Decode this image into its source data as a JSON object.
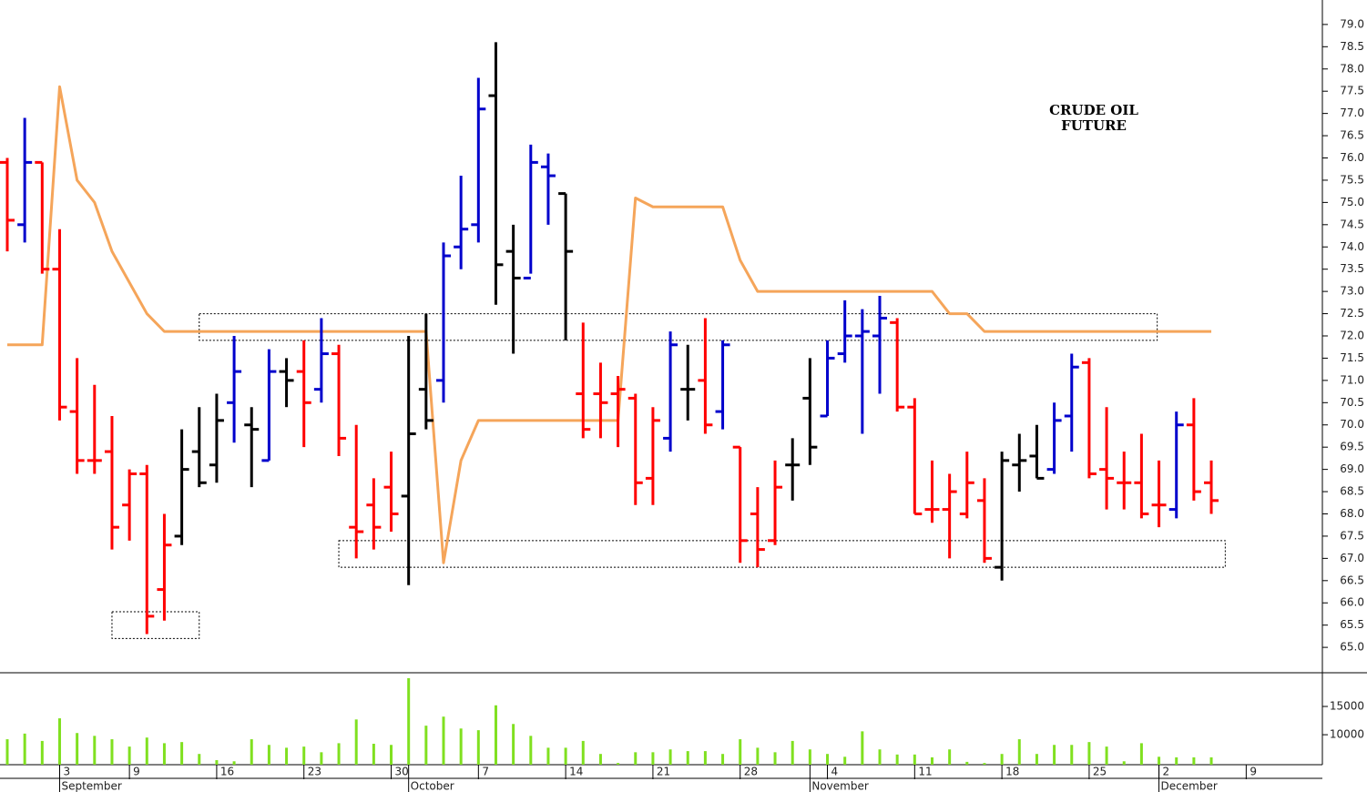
{
  "chart_data": {
    "type": "ohlc",
    "title_lines": [
      "CRUDE OIL",
      "FUTURE"
    ],
    "categories": [
      null,
      null,
      null,
      "3",
      null,
      null,
      null,
      "9",
      null,
      null,
      null,
      null,
      "16",
      null,
      null,
      null,
      null,
      "23",
      null,
      null,
      null,
      null,
      "30",
      null,
      null,
      null,
      null,
      "7",
      null,
      null,
      null,
      null,
      "14",
      null,
      null,
      null,
      null,
      "21",
      null,
      null,
      null,
      null,
      "28",
      null,
      null,
      null,
      null,
      "4",
      null,
      null,
      null,
      null,
      "11",
      null,
      null,
      null,
      null,
      "18",
      null,
      null,
      null,
      null,
      "25",
      null,
      null,
      null,
      "2",
      null,
      null,
      null,
      null,
      "9"
    ],
    "months": [
      {
        "index": 3,
        "label": "September"
      },
      {
        "index": 23,
        "label": "October"
      },
      {
        "index": 46,
        "label": "November"
      },
      {
        "index": 66,
        "label": "December"
      }
    ],
    "open": [
      75.9,
      74.5,
      75.9,
      73.5,
      70.3,
      69.2,
      69.4,
      68.2,
      68.9,
      66.3,
      67.5,
      69.4,
      69.1,
      70.5,
      70.0,
      69.2,
      71.2,
      71.2,
      70.8,
      71.6,
      67.7,
      68.2,
      68.6,
      68.4,
      70.8,
      71.0,
      74.0,
      74.5,
      77.4,
      73.9,
      73.3,
      75.8,
      75.2,
      70.7,
      70.7,
      70.7,
      70.6,
      68.8,
      69.7,
      70.8,
      71.0,
      70.3,
      69.5,
      68.0,
      67.4,
      69.1,
      70.6,
      70.2,
      71.6,
      72.0,
      72.0,
      72.3,
      70.4,
      68.1,
      68.1,
      68.0,
      68.3,
      66.8,
      69.1,
      69.3,
      69.0,
      70.2,
      71.4,
      69.0,
      68.7,
      68.7,
      68.2,
      68.1,
      70.0,
      68.7,
      null,
      null
    ],
    "high": [
      76.0,
      76.9,
      75.9,
      74.4,
      71.5,
      70.9,
      70.2,
      69.0,
      69.1,
      68.0,
      69.9,
      70.4,
      70.7,
      72.0,
      70.4,
      71.7,
      71.5,
      71.9,
      72.4,
      71.8,
      70.0,
      68.8,
      69.4,
      72.0,
      72.5,
      74.1,
      75.6,
      77.8,
      78.6,
      74.5,
      76.3,
      76.1,
      75.2,
      72.3,
      71.4,
      71.1,
      70.7,
      70.4,
      72.1,
      71.8,
      72.4,
      71.9,
      69.5,
      68.6,
      69.2,
      69.7,
      71.5,
      71.9,
      72.8,
      72.6,
      72.9,
      72.4,
      70.6,
      69.2,
      68.9,
      69.4,
      68.8,
      69.4,
      69.8,
      70.0,
      70.5,
      71.6,
      71.5,
      70.4,
      69.4,
      69.8,
      69.2,
      70.3,
      70.6,
      69.2,
      null,
      null
    ],
    "low": [
      73.9,
      74.1,
      73.4,
      70.1,
      68.9,
      68.9,
      67.2,
      67.4,
      65.3,
      65.6,
      67.3,
      68.6,
      68.7,
      69.6,
      68.6,
      69.2,
      70.4,
      69.5,
      70.5,
      69.3,
      67.0,
      67.2,
      67.6,
      66.4,
      69.9,
      70.5,
      73.5,
      74.1,
      72.7,
      71.6,
      73.4,
      74.5,
      71.9,
      69.7,
      69.7,
      69.5,
      68.2,
      68.2,
      69.4,
      70.1,
      69.8,
      69.9,
      66.9,
      66.8,
      67.3,
      68.3,
      69.1,
      70.2,
      71.4,
      69.8,
      70.7,
      70.3,
      68.0,
      67.8,
      67.0,
      67.9,
      66.9,
      66.5,
      68.5,
      68.8,
      68.9,
      69.4,
      68.8,
      68.1,
      68.1,
      67.9,
      67.7,
      67.9,
      68.3,
      68.0,
      null,
      null
    ],
    "close": [
      74.6,
      75.9,
      73.5,
      70.4,
      69.2,
      69.2,
      67.7,
      68.9,
      65.7,
      67.3,
      69.0,
      68.7,
      70.1,
      71.2,
      69.9,
      71.2,
      71.0,
      70.5,
      71.6,
      69.7,
      67.6,
      67.7,
      68.0,
      69.8,
      70.1,
      73.8,
      74.4,
      77.1,
      73.6,
      73.3,
      75.9,
      75.6,
      73.9,
      69.9,
      70.5,
      70.8,
      68.7,
      70.1,
      71.8,
      70.8,
      70.0,
      71.8,
      67.4,
      67.2,
      68.6,
      69.1,
      69.5,
      71.5,
      72.0,
      72.1,
      72.4,
      70.4,
      68.0,
      68.1,
      68.5,
      68.7,
      67.0,
      69.2,
      69.2,
      68.8,
      70.1,
      71.3,
      68.9,
      68.8,
      68.7,
      68.0,
      68.2,
      70.0,
      68.5,
      68.3,
      null,
      null
    ],
    "bar_colors": [
      "#ff0000",
      "#0000cc",
      "#ff0000",
      "#ff0000",
      "#ff0000",
      "#ff0000",
      "#ff0000",
      "#ff0000",
      "#ff0000",
      "#ff0000",
      "#000000",
      "#000000",
      "#000000",
      "#0000cc",
      "#000000",
      "#0000cc",
      "#000000",
      "#ff0000",
      "#0000cc",
      "#ff0000",
      "#ff0000",
      "#ff0000",
      "#ff0000",
      "#000000",
      "#000000",
      "#0000cc",
      "#0000cc",
      "#0000cc",
      "#000000",
      "#000000",
      "#0000cc",
      "#0000cc",
      "#000000",
      "#ff0000",
      "#ff0000",
      "#ff0000",
      "#ff0000",
      "#ff0000",
      "#0000cc",
      "#000000",
      "#ff0000",
      "#0000cc",
      "#ff0000",
      "#ff0000",
      "#ff0000",
      "#000000",
      "#000000",
      "#0000cc",
      "#0000cc",
      "#0000cc",
      "#0000cc",
      "#ff0000",
      "#ff0000",
      "#ff0000",
      "#ff0000",
      "#ff0000",
      "#ff0000",
      "#000000",
      "#000000",
      "#000000",
      "#0000cc",
      "#0000cc",
      "#ff0000",
      "#ff0000",
      "#ff0000",
      "#ff0000",
      "#ff0000",
      "#0000cc",
      "#ff0000",
      "#ff0000",
      null,
      null
    ],
    "line": {
      "color": "#f5a55a",
      "values": [
        71.8,
        71.8,
        71.8,
        77.6,
        75.5,
        75.0,
        73.9,
        73.2,
        72.5,
        72.1,
        72.1,
        72.1,
        72.1,
        72.1,
        72.1,
        72.1,
        72.1,
        72.1,
        72.1,
        72.1,
        72.1,
        72.1,
        72.1,
        72.1,
        72.1,
        66.9,
        69.2,
        70.1,
        70.1,
        70.1,
        70.1,
        70.1,
        70.1,
        70.1,
        70.1,
        70.1,
        75.1,
        74.9,
        74.9,
        74.9,
        74.9,
        74.9,
        73.7,
        73.0,
        73.0,
        73.0,
        73.0,
        73.0,
        73.0,
        73.0,
        73.0,
        73.0,
        73.0,
        73.0,
        72.5,
        72.5,
        72.1,
        72.1,
        72.1,
        72.1,
        72.1,
        72.1,
        72.1,
        72.1,
        72.1,
        72.1,
        72.1,
        72.1,
        72.1,
        72.1,
        null,
        null
      ]
    },
    "boxes": [
      {
        "x": [
          6,
          11
        ],
        "y": [
          65.2,
          65.8
        ]
      },
      {
        "x": [
          11,
          65.9
        ],
        "y": [
          71.9,
          72.5
        ]
      },
      {
        "x": [
          19,
          69.8
        ],
        "y": [
          66.8,
          67.4
        ]
      }
    ],
    "ylim": [
      64.45,
      79.55
    ],
    "yticks": [
      {
        "value": 65,
        "label": "65.0"
      },
      {
        "value": 65.5,
        "label": "65.5"
      },
      {
        "value": 66,
        "label": "66.0"
      },
      {
        "value": 66.5,
        "label": "66.5"
      },
      {
        "value": 67,
        "label": "67.0"
      },
      {
        "value": 67.5,
        "label": "67.5"
      },
      {
        "value": 68,
        "label": "68.0"
      },
      {
        "value": 68.5,
        "label": "68.5"
      },
      {
        "value": 69,
        "label": "69.0"
      },
      {
        "value": 69.5,
        "label": "69.5"
      },
      {
        "value": 70,
        "label": "70.0"
      },
      {
        "value": 70.5,
        "label": "70.5"
      },
      {
        "value": 71,
        "label": "71.0"
      },
      {
        "value": 71.5,
        "label": "71.5"
      },
      {
        "value": 72,
        "label": "72.0"
      },
      {
        "value": 72.5,
        "label": "72.5"
      },
      {
        "value": 73,
        "label": "73.0"
      },
      {
        "value": 73.5,
        "label": "73.5"
      },
      {
        "value": 74,
        "label": "74.0"
      },
      {
        "value": 74.5,
        "label": "74.5"
      },
      {
        "value": 75,
        "label": "75.0"
      },
      {
        "value": 75.5,
        "label": "75.5"
      },
      {
        "value": 76,
        "label": "76.0"
      },
      {
        "value": 76.5,
        "label": "76.5"
      },
      {
        "value": 77,
        "label": "77.0"
      },
      {
        "value": 77.5,
        "label": "77.5"
      },
      {
        "value": 78,
        "label": "78.0"
      },
      {
        "value": 78.5,
        "label": "78.5"
      },
      {
        "value": 79,
        "label": "79.0"
      }
    ],
    "volume": {
      "color": "#80e020",
      "ylim": [
        4700,
        20800
      ],
      "yticks": [
        10000,
        15000
      ],
      "values": [
        9200,
        10200,
        8900,
        12900,
        10300,
        9800,
        9200,
        7900,
        9500,
        8500,
        8700,
        6600,
        5500,
        5300,
        9200,
        8200,
        7700,
        7900,
        6900,
        8500,
        12700,
        8400,
        8200,
        20000,
        11600,
        13200,
        11100,
        10800,
        15200,
        11900,
        9800,
        7700,
        7700,
        8900,
        6600,
        5000,
        6900,
        6900,
        7400,
        7100,
        7100,
        6600,
        9200,
        7700,
        6900,
        8900,
        7400,
        6600,
        6100,
        10600,
        7400,
        6500,
        6500,
        6000,
        7400,
        5200,
        5000,
        6600,
        9200,
        6600,
        8200,
        8200,
        8700,
        7900,
        5300,
        8500,
        6100,
        6000,
        6000,
        6000,
        null,
        null
      ]
    }
  }
}
